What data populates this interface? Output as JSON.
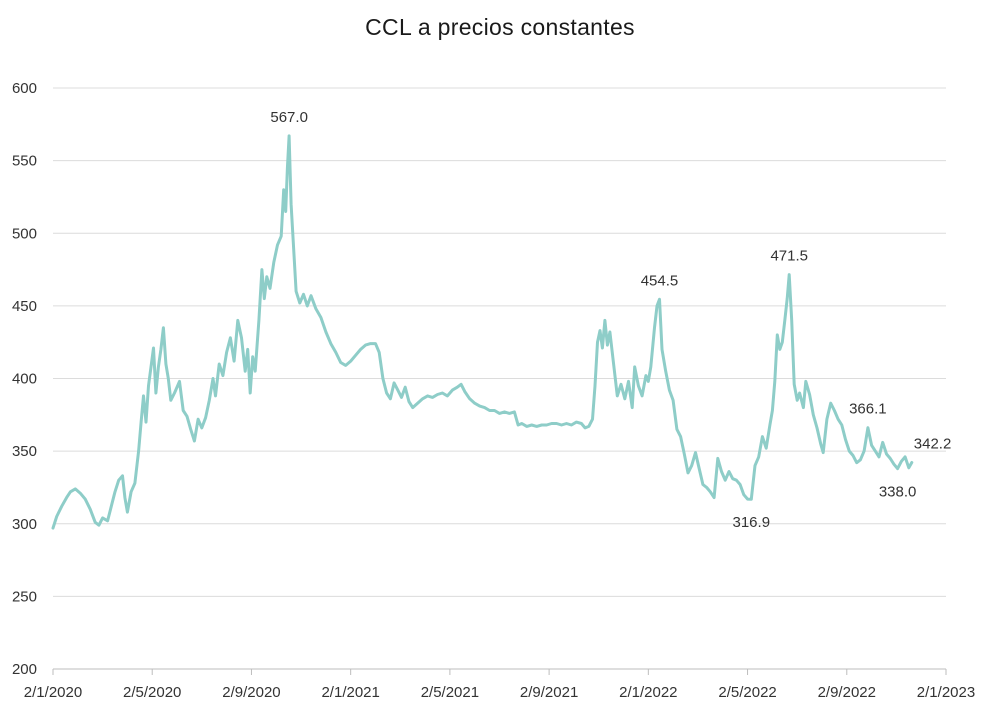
{
  "chart_data": {
    "type": "line",
    "title": "CCL a precios constantes",
    "xlabel": "",
    "ylabel": "",
    "ylim": [
      200,
      600
    ],
    "yticks": [
      200,
      250,
      300,
      350,
      400,
      450,
      500,
      550,
      600
    ],
    "xlim": [
      0,
      36
    ],
    "xtick_labels": [
      "2/1/2020",
      "2/5/2020",
      "2/9/2020",
      "2/1/2021",
      "2/5/2021",
      "2/9/2021",
      "2/1/2022",
      "2/5/2022",
      "2/9/2022",
      "2/1/2023"
    ],
    "xtick_positions": [
      0,
      4,
      8,
      12,
      16,
      20,
      24,
      28,
      32,
      36
    ],
    "x_unit": "months since 2/1/2020",
    "line_color": "#8ecdc8",
    "grid": true,
    "series": [
      {
        "name": "CCL",
        "points": [
          [
            0.0,
            297
          ],
          [
            0.15,
            305
          ],
          [
            0.35,
            312
          ],
          [
            0.55,
            318
          ],
          [
            0.7,
            322
          ],
          [
            0.9,
            324
          ],
          [
            1.1,
            321
          ],
          [
            1.3,
            317
          ],
          [
            1.5,
            310
          ],
          [
            1.7,
            301
          ],
          [
            1.85,
            299
          ],
          [
            2.0,
            304
          ],
          [
            2.2,
            302
          ],
          [
            2.35,
            312
          ],
          [
            2.5,
            322
          ],
          [
            2.65,
            330
          ],
          [
            2.8,
            333
          ],
          [
            2.9,
            318
          ],
          [
            3.0,
            308
          ],
          [
            3.15,
            322
          ],
          [
            3.3,
            328
          ],
          [
            3.45,
            350
          ],
          [
            3.55,
            370
          ],
          [
            3.65,
            388
          ],
          [
            3.75,
            370
          ],
          [
            3.85,
            395
          ],
          [
            3.95,
            408
          ],
          [
            4.05,
            421
          ],
          [
            4.15,
            390
          ],
          [
            4.25,
            408
          ],
          [
            4.35,
            420
          ],
          [
            4.45,
            435
          ],
          [
            4.55,
            410
          ],
          [
            4.65,
            400
          ],
          [
            4.75,
            385
          ],
          [
            4.9,
            390
          ],
          [
            5.1,
            398
          ],
          [
            5.25,
            378
          ],
          [
            5.4,
            374
          ],
          [
            5.55,
            365
          ],
          [
            5.7,
            357
          ],
          [
            5.85,
            372
          ],
          [
            6.0,
            366
          ],
          [
            6.15,
            373
          ],
          [
            6.3,
            385
          ],
          [
            6.45,
            400
          ],
          [
            6.55,
            388
          ],
          [
            6.7,
            410
          ],
          [
            6.85,
            402
          ],
          [
            7.0,
            418
          ],
          [
            7.15,
            428
          ],
          [
            7.3,
            412
          ],
          [
            7.45,
            440
          ],
          [
            7.6,
            428
          ],
          [
            7.75,
            405
          ],
          [
            7.85,
            420
          ],
          [
            7.95,
            390
          ],
          [
            8.05,
            415
          ],
          [
            8.15,
            405
          ],
          [
            8.3,
            440
          ],
          [
            8.42,
            475
          ],
          [
            8.52,
            455
          ],
          [
            8.62,
            470
          ],
          [
            8.75,
            462
          ],
          [
            8.9,
            480
          ],
          [
            9.05,
            492
          ],
          [
            9.2,
            498
          ],
          [
            9.3,
            530
          ],
          [
            9.38,
            515
          ],
          [
            9.45,
            545
          ],
          [
            9.52,
            567
          ],
          [
            9.6,
            520
          ],
          [
            9.7,
            490
          ],
          [
            9.8,
            460
          ],
          [
            9.95,
            452
          ],
          [
            10.1,
            458
          ],
          [
            10.25,
            450
          ],
          [
            10.4,
            457
          ],
          [
            10.6,
            448
          ],
          [
            10.8,
            442
          ],
          [
            11.0,
            432
          ],
          [
            11.2,
            424
          ],
          [
            11.4,
            418
          ],
          [
            11.6,
            411
          ],
          [
            11.8,
            409
          ],
          [
            12.0,
            412
          ],
          [
            12.2,
            416
          ],
          [
            12.4,
            420
          ],
          [
            12.6,
            423
          ],
          [
            12.8,
            424
          ],
          [
            13.0,
            424
          ],
          [
            13.15,
            418
          ],
          [
            13.3,
            400
          ],
          [
            13.45,
            390
          ],
          [
            13.6,
            386
          ],
          [
            13.75,
            397
          ],
          [
            13.9,
            392
          ],
          [
            14.05,
            387
          ],
          [
            14.2,
            394
          ],
          [
            14.35,
            384
          ],
          [
            14.5,
            380
          ],
          [
            14.7,
            383
          ],
          [
            14.9,
            386
          ],
          [
            15.1,
            388
          ],
          [
            15.3,
            387
          ],
          [
            15.5,
            389
          ],
          [
            15.7,
            390
          ],
          [
            15.9,
            388
          ],
          [
            16.1,
            392
          ],
          [
            16.3,
            394
          ],
          [
            16.45,
            396
          ],
          [
            16.6,
            391
          ],
          [
            16.8,
            386
          ],
          [
            17.0,
            383
          ],
          [
            17.2,
            381
          ],
          [
            17.4,
            380
          ],
          [
            17.6,
            378
          ],
          [
            17.8,
            378
          ],
          [
            18.0,
            376
          ],
          [
            18.2,
            377
          ],
          [
            18.4,
            376
          ],
          [
            18.6,
            377
          ],
          [
            18.75,
            368
          ],
          [
            18.9,
            369
          ],
          [
            19.1,
            367
          ],
          [
            19.3,
            368
          ],
          [
            19.5,
            367
          ],
          [
            19.7,
            368
          ],
          [
            19.9,
            368
          ],
          [
            20.1,
            369
          ],
          [
            20.3,
            369
          ],
          [
            20.5,
            368
          ],
          [
            20.7,
            369
          ],
          [
            20.9,
            368
          ],
          [
            21.1,
            370
          ],
          [
            21.3,
            369
          ],
          [
            21.45,
            366
          ],
          [
            21.6,
            367
          ],
          [
            21.75,
            372
          ],
          [
            21.85,
            395
          ],
          [
            21.95,
            425
          ],
          [
            22.05,
            433
          ],
          [
            22.15,
            421
          ],
          [
            22.25,
            440
          ],
          [
            22.35,
            423
          ],
          [
            22.45,
            432
          ],
          [
            22.6,
            410
          ],
          [
            22.75,
            388
          ],
          [
            22.9,
            396
          ],
          [
            23.05,
            386
          ],
          [
            23.2,
            398
          ],
          [
            23.35,
            380
          ],
          [
            23.45,
            408
          ],
          [
            23.6,
            395
          ],
          [
            23.75,
            388
          ],
          [
            23.9,
            402
          ],
          [
            24.0,
            398
          ],
          [
            24.1,
            408
          ],
          [
            24.25,
            435
          ],
          [
            24.35,
            450
          ],
          [
            24.45,
            454.5
          ],
          [
            24.55,
            420
          ],
          [
            24.7,
            405
          ],
          [
            24.85,
            392
          ],
          [
            25.0,
            385
          ],
          [
            25.15,
            365
          ],
          [
            25.3,
            360
          ],
          [
            25.45,
            348
          ],
          [
            25.6,
            335
          ],
          [
            25.75,
            340
          ],
          [
            25.9,
            349
          ],
          [
            26.05,
            338
          ],
          [
            26.2,
            327
          ],
          [
            26.35,
            325
          ],
          [
            26.5,
            322
          ],
          [
            26.65,
            318
          ],
          [
            26.8,
            345
          ],
          [
            26.95,
            336
          ],
          [
            27.1,
            330
          ],
          [
            27.25,
            336
          ],
          [
            27.4,
            331
          ],
          [
            27.55,
            330
          ],
          [
            27.7,
            327
          ],
          [
            27.85,
            320
          ],
          [
            28.0,
            317
          ],
          [
            28.15,
            316.9
          ],
          [
            28.3,
            340
          ],
          [
            28.45,
            346
          ],
          [
            28.6,
            360
          ],
          [
            28.75,
            352
          ],
          [
            28.9,
            368
          ],
          [
            29.0,
            378
          ],
          [
            29.1,
            398
          ],
          [
            29.2,
            430
          ],
          [
            29.3,
            420
          ],
          [
            29.4,
            425
          ],
          [
            29.5,
            440
          ],
          [
            29.6,
            455
          ],
          [
            29.68,
            471.5
          ],
          [
            29.78,
            440
          ],
          [
            29.88,
            396
          ],
          [
            30.0,
            385
          ],
          [
            30.1,
            390
          ],
          [
            30.25,
            380
          ],
          [
            30.35,
            398
          ],
          [
            30.5,
            389
          ],
          [
            30.65,
            375
          ],
          [
            30.8,
            366
          ],
          [
            30.95,
            355
          ],
          [
            31.05,
            349
          ],
          [
            31.2,
            372
          ],
          [
            31.35,
            383
          ],
          [
            31.5,
            378
          ],
          [
            31.65,
            372
          ],
          [
            31.8,
            368
          ],
          [
            31.95,
            358
          ],
          [
            32.1,
            350
          ],
          [
            32.25,
            347
          ],
          [
            32.4,
            342
          ],
          [
            32.55,
            344
          ],
          [
            32.7,
            350
          ],
          [
            32.85,
            366.1
          ],
          [
            33.0,
            354
          ],
          [
            33.15,
            350
          ],
          [
            33.3,
            346
          ],
          [
            33.45,
            356
          ],
          [
            33.6,
            348
          ],
          [
            33.75,
            345
          ],
          [
            33.9,
            341
          ],
          [
            34.05,
            338
          ],
          [
            34.2,
            343
          ],
          [
            34.35,
            346
          ],
          [
            34.5,
            338.5
          ],
          [
            34.62,
            342.2
          ]
        ]
      }
    ],
    "annotations": [
      {
        "text": "567.0",
        "x": 9.52,
        "y": 567,
        "anchor": "above"
      },
      {
        "text": "454.5",
        "x": 24.45,
        "y": 454.5,
        "anchor": "above"
      },
      {
        "text": "471.5",
        "x": 29.68,
        "y": 471.5,
        "anchor": "above"
      },
      {
        "text": "316.9",
        "x": 28.15,
        "y": 316.9,
        "anchor": "below"
      },
      {
        "text": "366.1",
        "x": 32.85,
        "y": 366.1,
        "anchor": "above"
      },
      {
        "text": "338.0",
        "x": 34.05,
        "y": 338.0,
        "anchor": "below"
      },
      {
        "text": "342.2",
        "x": 34.62,
        "y": 342.2,
        "anchor": "above-right"
      }
    ]
  }
}
